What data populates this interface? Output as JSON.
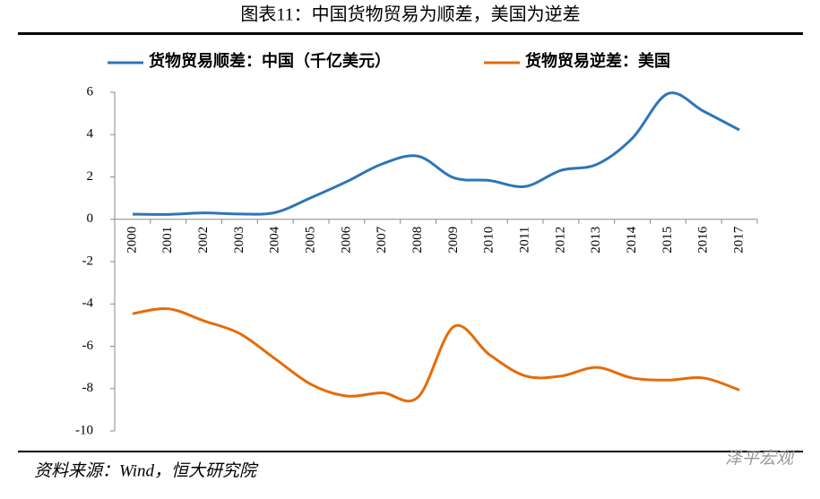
{
  "title": "图表11：中国货物贸易为顺差，美国为逆差",
  "source": "资料来源：Wind，恒大研究院",
  "watermark": "泽平宏观",
  "chart_data": {
    "type": "line",
    "categories": [
      "2000",
      "2001",
      "2002",
      "2003",
      "2004",
      "2005",
      "2006",
      "2007",
      "2008",
      "2009",
      "2010",
      "2011",
      "2012",
      "2013",
      "2014",
      "2015",
      "2016",
      "2017"
    ],
    "series": [
      {
        "name": "货物贸易顺差：中国（千亿美元）",
        "color": "#2e75b6",
        "values": [
          0.24,
          0.23,
          0.3,
          0.25,
          0.32,
          1.02,
          1.78,
          2.62,
          2.98,
          1.96,
          1.83,
          1.55,
          2.31,
          2.59,
          3.83,
          5.94,
          5.1,
          4.22
        ]
      },
      {
        "name": "货物贸易逆差：美国",
        "color": "#e46c0a",
        "values": [
          -4.46,
          -4.23,
          -4.8,
          -5.4,
          -6.6,
          -7.8,
          -8.35,
          -8.2,
          -8.4,
          -5.07,
          -6.4,
          -7.4,
          -7.41,
          -7.0,
          -7.5,
          -7.6,
          -7.5,
          -8.07
        ]
      }
    ],
    "ylim": [
      -10,
      6
    ],
    "yticks": [
      -10,
      -8,
      -6,
      -4,
      -2,
      0,
      2,
      4,
      6
    ],
    "grid": false
  }
}
